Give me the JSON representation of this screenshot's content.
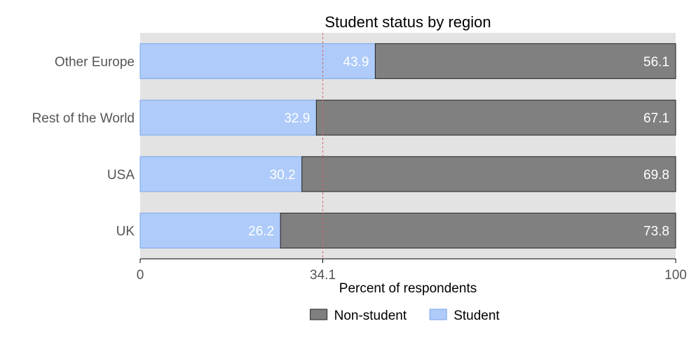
{
  "chart_data": {
    "type": "bar",
    "orientation": "horizontal",
    "stacked": true,
    "title": "Student status by region",
    "xlabel": "Percent of respondents",
    "ylabel": "",
    "xlim": [
      0,
      100
    ],
    "x_ticks": [
      "0",
      "34.1",
      "100"
    ],
    "reference_line": {
      "value": 34.1,
      "style": "dashed",
      "color": "#e06060"
    },
    "categories": [
      "Other Europe",
      "Rest of the World",
      "USA",
      "UK"
    ],
    "series": [
      {
        "name": "Student",
        "values": [
          43.9,
          32.9,
          30.2,
          26.2
        ],
        "labels": [
          "43.9",
          "32.9",
          "30.2",
          "26.2"
        ],
        "color": "#aecbfa",
        "stroke": "#7aa6e8"
      },
      {
        "name": "Non-student",
        "values": [
          56.1,
          67.1,
          69.8,
          73.8
        ],
        "labels": [
          "56.1",
          "67.1",
          "69.8",
          "73.8"
        ],
        "color": "#808080",
        "stroke": "#222222"
      }
    ],
    "legend": {
      "position": "bottom",
      "entries": [
        {
          "name": "Non-student",
          "color": "#808080",
          "stroke": "#222222"
        },
        {
          "name": "Student",
          "color": "#aecbfa",
          "stroke": "#7aa6e8"
        }
      ]
    },
    "grid": false,
    "panel_background": "#e3e3e3"
  }
}
